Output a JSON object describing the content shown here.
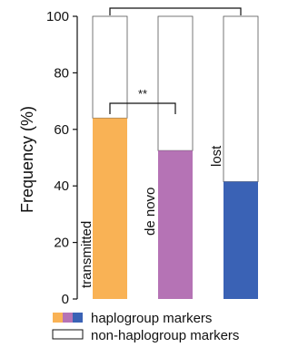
{
  "chart_data": {
    "type": "bar",
    "stacked": true,
    "categories": [
      "transmitted",
      "de novo",
      "lost"
    ],
    "series": [
      {
        "name": "haplogroup markers",
        "values": [
          64,
          52.5,
          41.5
        ]
      },
      {
        "name": "non-haplogroup markers",
        "values": [
          36,
          47.5,
          58.5
        ]
      }
    ],
    "bar_colors": [
      "#F9B255",
      "#B573B5",
      "#3A62B5"
    ],
    "non_marker_color": "#ffffff",
    "ylabel": "Frequency (%)",
    "ylim": [
      0,
      100
    ],
    "yticks": [
      "0",
      "20",
      "40",
      "60",
      "80",
      "100"
    ],
    "yticks_values": [
      0,
      20,
      40,
      60,
      80,
      100
    ],
    "significance": [
      {
        "from": "transmitted",
        "to": "de novo",
        "label": "**"
      },
      {
        "from": "transmitted",
        "to": "lost",
        "label": "****"
      }
    ],
    "legend": [
      {
        "label": "haplogroup markers",
        "swatch": [
          "#F9B255",
          "#B573B5",
          "#3A62B5"
        ]
      },
      {
        "label": "non-haplogroup markers",
        "swatch": [
          "#ffffff"
        ]
      }
    ],
    "legend_position": "bottom-center",
    "grid": false
  }
}
